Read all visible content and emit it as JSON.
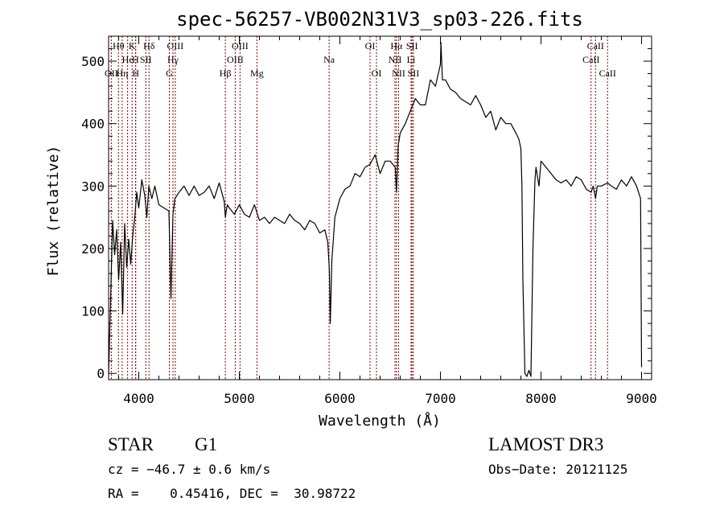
{
  "chart_data": {
    "type": "line",
    "title": "spec-56257-VB002N31V3_sp03-226.fits",
    "xlabel": "Wavelength (Å)",
    "ylabel": "Flux (relative)",
    "xlim": [
      3700,
      9100
    ],
    "ylim": [
      -10,
      540
    ],
    "x_ticks": [
      4000,
      5000,
      6000,
      7000,
      8000,
      9000
    ],
    "x_tick_labels": [
      "4000",
      "5000",
      "6000",
      "7000",
      "8000",
      "9000"
    ],
    "y_ticks": [
      0,
      100,
      200,
      300,
      400,
      500
    ],
    "y_tick_labels": [
      "0",
      "100",
      "200",
      "300",
      "400",
      "500"
    ],
    "grid": false,
    "line_color": "#000000",
    "marker_color": "#8b0000",
    "series": [
      {
        "x": [
          3700,
          3720,
          3740,
          3760,
          3780,
          3800,
          3820,
          3840,
          3860,
          3880,
          3900,
          3920,
          3940,
          3960,
          3980,
          4000,
          4030,
          4060,
          4080,
          4100,
          4130,
          4160,
          4200,
          4250,
          4300,
          4320,
          4340,
          4360,
          4400,
          4450,
          4500,
          4550,
          4600,
          4650,
          4700,
          4750,
          4800,
          4850,
          4861,
          4880,
          4900,
          4950,
          5000,
          5050,
          5100,
          5150,
          5200,
          5250,
          5300,
          5350,
          5400,
          5450,
          5500,
          5550,
          5600,
          5650,
          5700,
          5750,
          5800,
          5850,
          5880,
          5895,
          5905,
          5920,
          5950,
          6000,
          6050,
          6100,
          6150,
          6200,
          6250,
          6300,
          6350,
          6400,
          6450,
          6500,
          6550,
          6563,
          6580,
          6600,
          6650,
          6700,
          6750,
          6800,
          6850,
          6900,
          6950,
          7000,
          7005,
          7020,
          7050,
          7100,
          7150,
          7200,
          7250,
          7300,
          7350,
          7400,
          7450,
          7500,
          7550,
          7600,
          7650,
          7700,
          7750,
          7780,
          7800,
          7810,
          7820,
          7840,
          7860,
          7880,
          7900,
          7920,
          7940,
          7950,
          7960,
          7980,
          8000,
          8050,
          8100,
          8150,
          8200,
          8250,
          8300,
          8350,
          8400,
          8450,
          8498,
          8520,
          8542,
          8560,
          8600,
          8662,
          8700,
          8750,
          8800,
          8850,
          8900,
          8950,
          8990,
          9000
        ],
        "y": [
          0,
          120,
          245,
          190,
          230,
          150,
          210,
          95,
          240,
          170,
          215,
          175,
          220,
          250,
          290,
          265,
          310,
          285,
          250,
          300,
          280,
          300,
          270,
          265,
          260,
          120,
          255,
          280,
          290,
          300,
          285,
          300,
          285,
          290,
          300,
          280,
          305,
          275,
          250,
          270,
          265,
          255,
          270,
          255,
          250,
          270,
          245,
          250,
          240,
          250,
          245,
          240,
          255,
          245,
          240,
          230,
          245,
          240,
          225,
          230,
          210,
          165,
          80,
          180,
          250,
          280,
          295,
          300,
          320,
          315,
          330,
          335,
          350,
          320,
          340,
          340,
          330,
          290,
          365,
          385,
          400,
          420,
          440,
          430,
          430,
          470,
          460,
          495,
          530,
          470,
          470,
          455,
          450,
          440,
          435,
          430,
          445,
          430,
          410,
          420,
          390,
          410,
          400,
          400,
          385,
          375,
          360,
          300,
          150,
          0,
          -5,
          5,
          -5,
          200,
          310,
          330,
          320,
          300,
          340,
          330,
          320,
          310,
          305,
          310,
          300,
          315,
          310,
          295,
          290,
          300,
          280,
          300,
          300,
          305,
          300,
          295,
          310,
          300,
          315,
          300,
          280,
          10
        ]
      }
    ],
    "line_markers": [
      {
        "label": "Hθ",
        "x": 3798,
        "row": 1
      },
      {
        "label": "K",
        "x": 3934,
        "row": 1
      },
      {
        "label": "Hδ",
        "x": 4102,
        "row": 1
      },
      {
        "label": "OIII",
        "x": 4363,
        "row": 1
      },
      {
        "label": "OIII",
        "x": 5007,
        "row": 1
      },
      {
        "label": "OI",
        "x": 6300,
        "row": 1
      },
      {
        "label": "Hα",
        "x": 6563,
        "row": 1
      },
      {
        "label": "SII",
        "x": 6717,
        "row": 1
      },
      {
        "label": "CaII",
        "x": 8542,
        "row": 1
      },
      {
        "label": "He",
        "x": 3889,
        "row": 2
      },
      {
        "label": "H",
        "x": 3968,
        "row": 2
      },
      {
        "label": "SII",
        "x": 4070,
        "row": 2
      },
      {
        "label": "Hγ",
        "x": 4340,
        "row": 2
      },
      {
        "label": "OIII",
        "x": 4959,
        "row": 2
      },
      {
        "label": "Na",
        "x": 5893,
        "row": 2
      },
      {
        "label": "NII",
        "x": 6548,
        "row": 2
      },
      {
        "label": "Li",
        "x": 6708,
        "row": 2
      },
      {
        "label": "CaII",
        "x": 8498,
        "row": 2
      },
      {
        "label": "OII",
        "x": 3727,
        "row": 3
      },
      {
        "label": "Hη",
        "x": 3835,
        "row": 3
      },
      {
        "label": "H",
        "x": 3970,
        "row": 3
      },
      {
        "label": "G",
        "x": 4304,
        "row": 3
      },
      {
        "label": "Hβ",
        "x": 4861,
        "row": 3
      },
      {
        "label": "Mg",
        "x": 5175,
        "row": 3
      },
      {
        "label": "OI",
        "x": 6364,
        "row": 3
      },
      {
        "label": "NII",
        "x": 6584,
        "row": 3
      },
      {
        "label": "SII",
        "x": 6731,
        "row": 3
      },
      {
        "label": "CaII",
        "x": 8662,
        "row": 3
      }
    ]
  },
  "info": {
    "class_label": "STAR",
    "subclass": "G1",
    "survey": "LAMOST DR3",
    "redshift": "cz = −46.7 ± 0.6 km/s",
    "obs_date": "Obs−Date: 20121125",
    "coords": "RA =    0.45416, DEC =  30.98722"
  }
}
